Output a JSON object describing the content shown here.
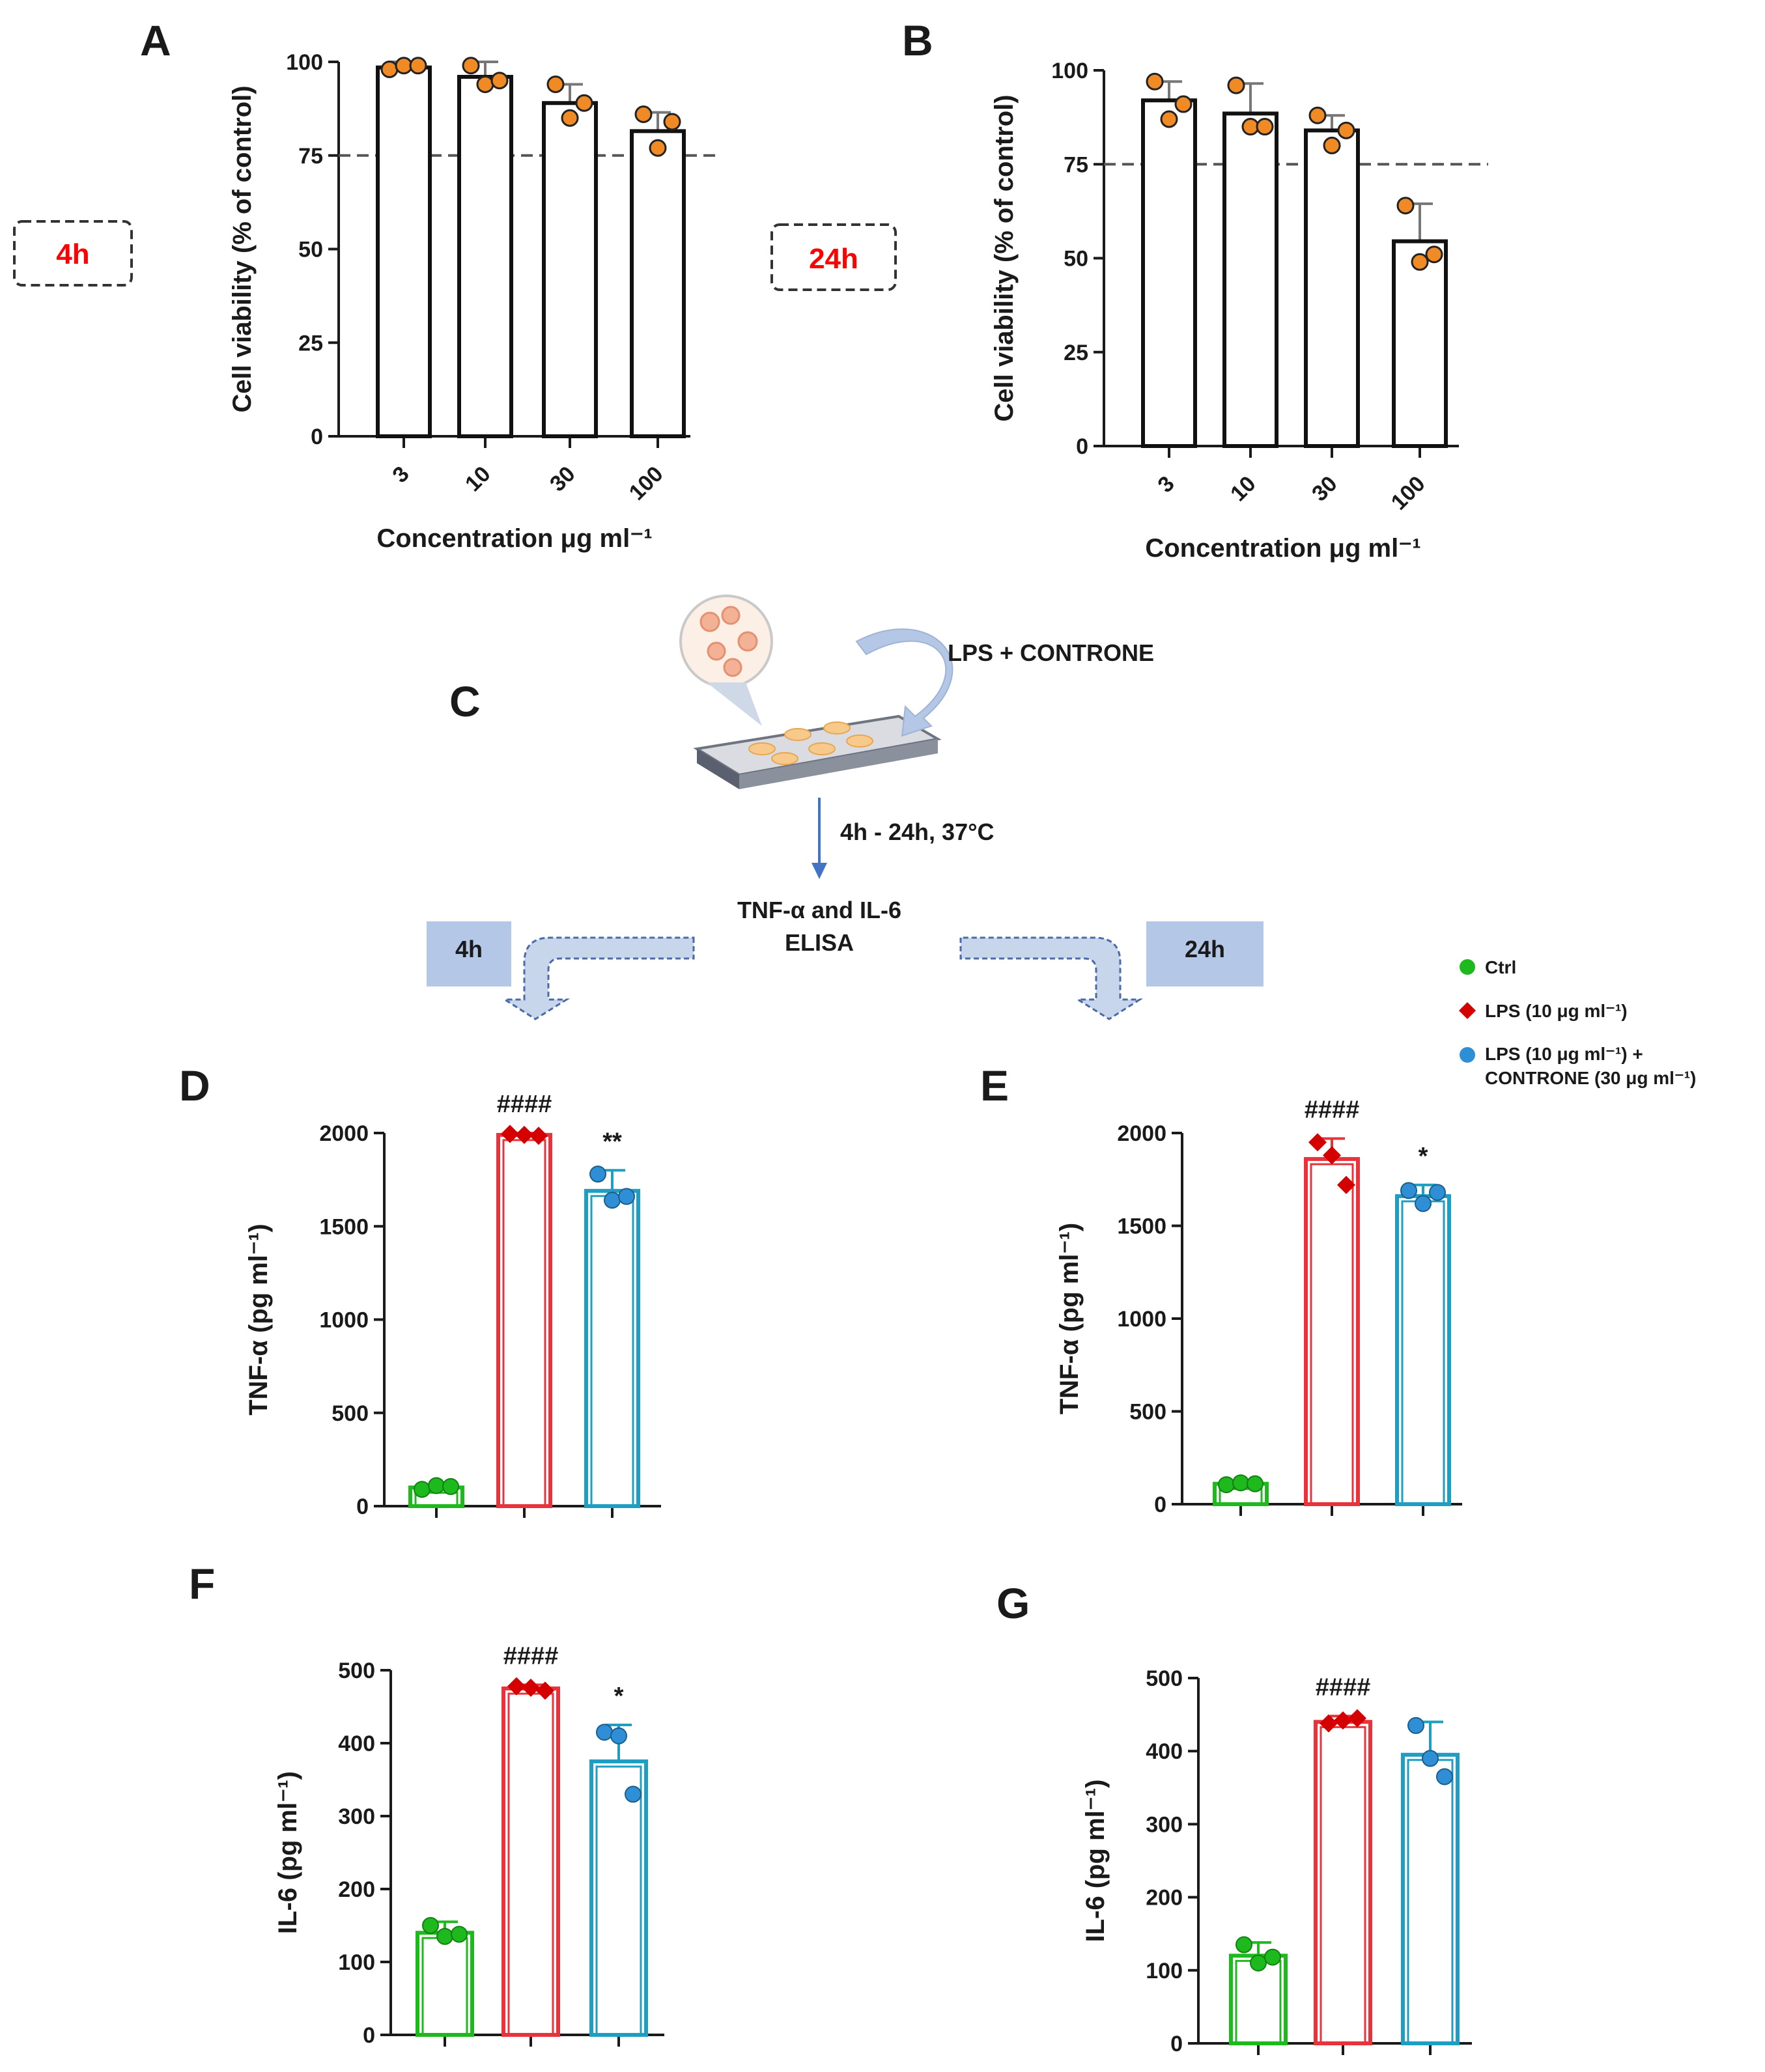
{
  "chart_data": [
    {
      "id": "A",
      "panel_label": "A",
      "type": "bar",
      "time_tag": "4h",
      "categories": [
        "3",
        "10",
        "30",
        "100"
      ],
      "values": [
        98.5,
        96,
        89,
        81.5
      ],
      "errors": [
        1.5,
        4,
        5,
        5
      ],
      "points": [
        [
          98,
          99,
          99
        ],
        [
          99,
          94,
          95
        ],
        [
          94,
          85,
          89
        ],
        [
          86,
          77,
          84
        ]
      ],
      "ylim": [
        0,
        100
      ],
      "yticks": [
        0,
        25,
        50,
        75,
        100
      ],
      "reference_line": 75,
      "ylabel": "Cell viability (% of control)",
      "xlabel": "Concentration μg ml⁻¹"
    },
    {
      "id": "B",
      "panel_label": "B",
      "type": "bar",
      "time_tag": "24h",
      "categories": [
        "3",
        "10",
        "30",
        "100"
      ],
      "values": [
        92,
        88.5,
        84,
        54.5
      ],
      "errors": [
        5,
        8,
        4,
        10
      ],
      "points": [
        [
          97,
          87,
          91
        ],
        [
          96,
          85,
          85
        ],
        [
          88,
          80,
          84
        ],
        [
          64,
          49,
          51
        ]
      ],
      "ylim": [
        0,
        100
      ],
      "yticks": [
        0,
        25,
        50,
        75,
        100
      ],
      "reference_line": 75,
      "ylabel": "Cell viability (% of control)",
      "xlabel": "Concentration μg ml⁻¹"
    },
    {
      "id": "D",
      "panel_label": "D",
      "type": "bar",
      "groups": [
        "Ctrl",
        "LPS",
        "LPS + CONTRONE"
      ],
      "values": [
        100,
        1990,
        1690
      ],
      "errors": [
        0,
        10,
        110
      ],
      "points": [
        [
          90,
          110,
          105
        ],
        [
          1995,
          1990,
          1985
        ],
        [
          1780,
          1640,
          1660
        ]
      ],
      "ylim": [
        0,
        2000
      ],
      "yticks": [
        0,
        500,
        1000,
        1500,
        2000
      ],
      "significance": [
        "",
        "####",
        "**"
      ],
      "ylabel": "TNF-α (pg ml⁻¹)"
    },
    {
      "id": "E",
      "panel_label": "E",
      "type": "bar",
      "groups": [
        "Ctrl",
        "LPS",
        "LPS + CONTRONE"
      ],
      "values": [
        110,
        1860,
        1660
      ],
      "errors": [
        0,
        110,
        60
      ],
      "points": [
        [
          105,
          115,
          110
        ],
        [
          1950,
          1880,
          1720
        ],
        [
          1690,
          1620,
          1680
        ]
      ],
      "ylim": [
        0,
        2000
      ],
      "yticks": [
        0,
        500,
        1000,
        1500,
        2000
      ],
      "significance": [
        "",
        "####",
        "*"
      ],
      "ylabel": "TNF-α (pg ml⁻¹)"
    },
    {
      "id": "F",
      "panel_label": "F",
      "type": "bar",
      "groups": [
        "Ctrl",
        "LPS",
        "LPS + CONTRONE"
      ],
      "values": [
        140,
        475,
        375
      ],
      "errors": [
        15,
        5,
        50
      ],
      "points": [
        [
          150,
          135,
          138
        ],
        [
          478,
          476,
          472
        ],
        [
          415,
          410,
          330
        ]
      ],
      "ylim": [
        0,
        500
      ],
      "yticks": [
        0,
        100,
        200,
        300,
        400,
        500
      ],
      "significance": [
        "",
        "####",
        "*"
      ],
      "ylabel": "IL-6 (pg ml⁻¹)"
    },
    {
      "id": "G",
      "panel_label": "G",
      "type": "bar",
      "groups": [
        "Ctrl",
        "LPS",
        "LPS + CONTRONE"
      ],
      "values": [
        120,
        440,
        395
      ],
      "errors": [
        18,
        8,
        45
      ],
      "points": [
        [
          135,
          110,
          118
        ],
        [
          438,
          442,
          445
        ],
        [
          435,
          390,
          365
        ]
      ],
      "ylim": [
        0,
        500
      ],
      "yticks": [
        0,
        100,
        200,
        300,
        400,
        500
      ],
      "significance": [
        "",
        "####",
        ""
      ],
      "ylabel": "IL-6 (pg ml⁻¹)"
    }
  ],
  "colors": {
    "text": "#1a1a1a",
    "time_tag": "#ff0000",
    "dot_orange": "#f08a24",
    "ctrl": "#1db91d",
    "lps": "#e8333c",
    "lps_marker": "#d40000",
    "controne": "#1e9ec3",
    "controne_marker": "#2e8fd6",
    "flow_box": "#b4c7e7",
    "flow_arrow": "#4472c4"
  },
  "legend": {
    "ctrl": "Ctrl",
    "lps": "LPS (10 μg ml⁻¹)",
    "combo_line1": "LPS (10 μg ml⁻¹)  +",
    "combo_line2": "CONTRONE (30 μg ml⁻¹)"
  },
  "schematic": {
    "panel_label": "C",
    "treatment": "LPS + CONTRONE",
    "incubation": "4h - 24h, 37°C",
    "assay_line1": "TNF-α and IL-6",
    "assay_line2": "ELISA",
    "box_left": "4h",
    "box_right": "24h"
  }
}
